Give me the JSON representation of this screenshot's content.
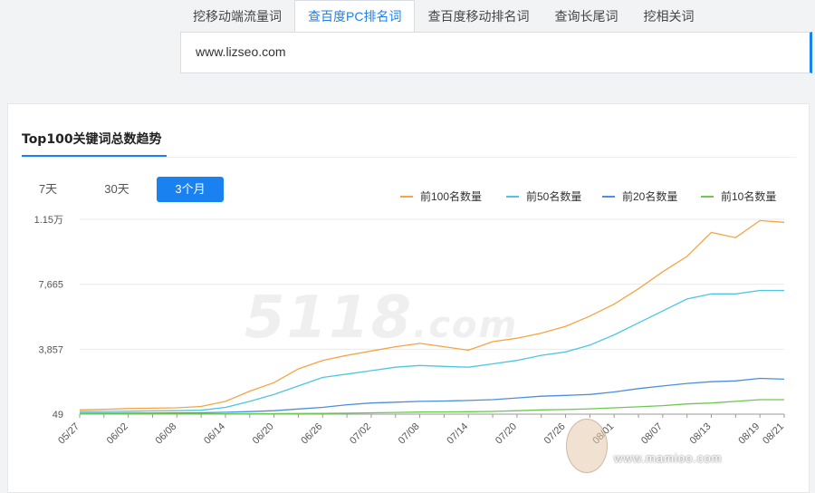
{
  "tabs": [
    {
      "label": "挖移动端流量词",
      "active": false
    },
    {
      "label": "查百度PC排名词",
      "active": true
    },
    {
      "label": "查百度移动排名词",
      "active": false
    },
    {
      "label": "查询长尾词",
      "active": false
    },
    {
      "label": "挖相关词",
      "active": false
    }
  ],
  "search": {
    "value": "www.lizseo.com"
  },
  "card": {
    "title": "Top100关键词总数趋势",
    "ranges": [
      {
        "label": "7天",
        "active": false
      },
      {
        "label": "30天",
        "active": false
      },
      {
        "label": "3个月",
        "active": true
      }
    ]
  },
  "watermark": {
    "main": "5118",
    "suffix": ".com"
  },
  "footer_watermark": "www.mamioo.com",
  "colors": {
    "accent": "#1a82f0",
    "top100": "#f5a443",
    "top50": "#4dc6e0",
    "top20": "#4a8fe0",
    "top10": "#6cc94f"
  },
  "chart_data": {
    "type": "line",
    "x": [
      "05/27",
      "05/30",
      "06/02",
      "06/05",
      "06/08",
      "06/11",
      "06/14",
      "06/17",
      "06/20",
      "06/23",
      "06/26",
      "06/29",
      "07/02",
      "07/05",
      "07/08",
      "07/11",
      "07/14",
      "07/17",
      "07/20",
      "07/23",
      "07/26",
      "07/29",
      "08/01",
      "08/04",
      "08/07",
      "08/10",
      "08/13",
      "08/16",
      "08/19",
      "08/21"
    ],
    "y_ticks": [
      {
        "value": 49,
        "label": "49"
      },
      {
        "value": 3857,
        "label": "3,857"
      },
      {
        "value": 7665,
        "label": "7,665"
      },
      {
        "value": 11473,
        "label": "1.15万"
      }
    ],
    "ylim": [
      49,
      11473
    ],
    "legend_position": "top-right",
    "grid": true,
    "series": [
      {
        "name": "前100名数量",
        "color": "#f5a443",
        "values": [
          300,
          330,
          380,
          400,
          420,
          500,
          800,
          1400,
          1900,
          2700,
          3200,
          3500,
          3750,
          4000,
          4200,
          4000,
          3800,
          4300,
          4500,
          4800,
          5200,
          5800,
          6500,
          7400,
          8400,
          9300,
          10700,
          10400,
          11400,
          11300
        ]
      },
      {
        "name": "前50名数量",
        "color": "#4dc6e0",
        "values": [
          200,
          210,
          220,
          240,
          250,
          280,
          450,
          800,
          1200,
          1700,
          2200,
          2400,
          2600,
          2800,
          2900,
          2850,
          2800,
          3000,
          3200,
          3500,
          3700,
          4100,
          4700,
          5400,
          6100,
          6800,
          7100,
          7100,
          7300,
          7300
        ]
      },
      {
        "name": "前20名数量",
        "color": "#4a8fe0",
        "values": [
          100,
          105,
          110,
          115,
          120,
          130,
          160,
          200,
          250,
          350,
          450,
          600,
          700,
          750,
          800,
          820,
          850,
          900,
          1000,
          1100,
          1150,
          1200,
          1350,
          1550,
          1700,
          1850,
          1950,
          2000,
          2150,
          2100
        ]
      },
      {
        "name": "前10名数量",
        "color": "#6cc94f",
        "values": [
          60,
          62,
          64,
          66,
          68,
          70,
          72,
          75,
          80,
          85,
          90,
          110,
          130,
          150,
          170,
          180,
          190,
          210,
          250,
          300,
          320,
          360,
          420,
          480,
          550,
          650,
          700,
          800,
          900,
          900
        ]
      }
    ]
  }
}
